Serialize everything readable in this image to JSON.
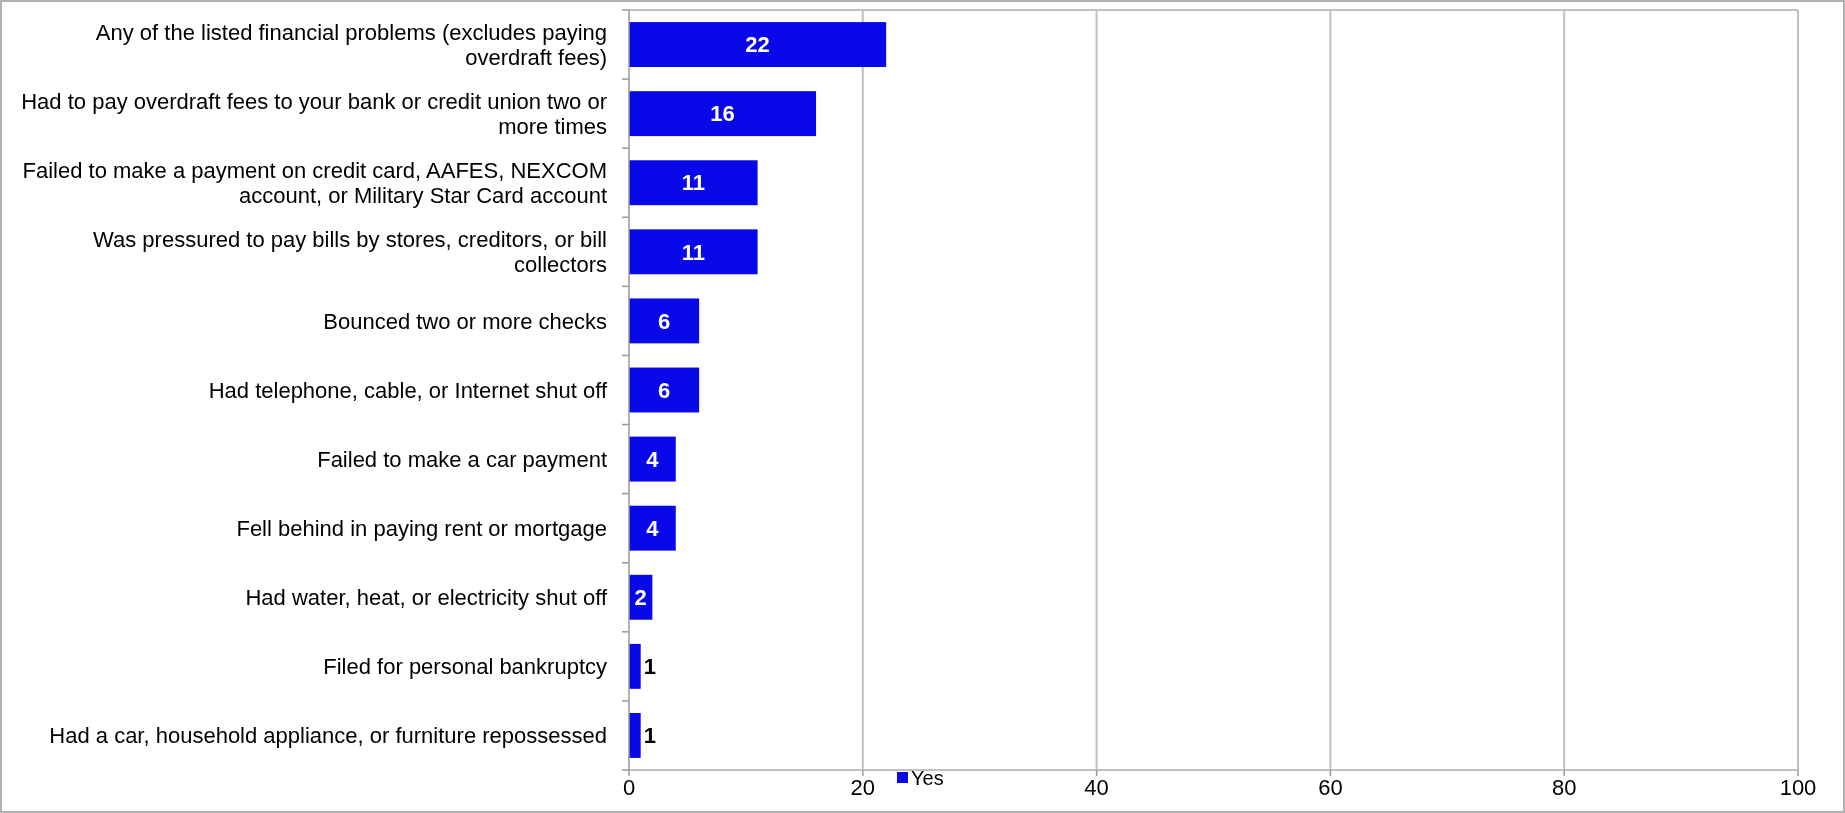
{
  "chart_data": {
    "type": "bar",
    "orientation": "horizontal",
    "categories": [
      "Any of the listed financial problems (excludes paying overdraft fees)",
      "Had to pay overdraft fees to your bank or credit union two or more times",
      "Failed to make a payment on credit card, AAFES, NEXCOM account, or Military Star Card account",
      "Was pressured to pay bills by stores, creditors, or bill collectors",
      "Bounced two or more checks",
      "Had telephone, cable, or Internet shut off",
      "Failed to make a car payment",
      "Fell behind in paying rent or mortgage",
      "Had water, heat, or electricity shut off",
      "Filed for personal bankruptcy",
      "Had a car, household appliance, or furniture repossessed"
    ],
    "series": [
      {
        "name": "Yes",
        "color": "#0808e8",
        "values": [
          22,
          16,
          11,
          11,
          6,
          6,
          4,
          4,
          2,
          1,
          1
        ]
      }
    ],
    "xlim": [
      0,
      100
    ],
    "xticks": [
      0,
      20,
      40,
      60,
      80,
      100
    ],
    "grid": "x",
    "data_labels": true,
    "legend": "bottom"
  }
}
